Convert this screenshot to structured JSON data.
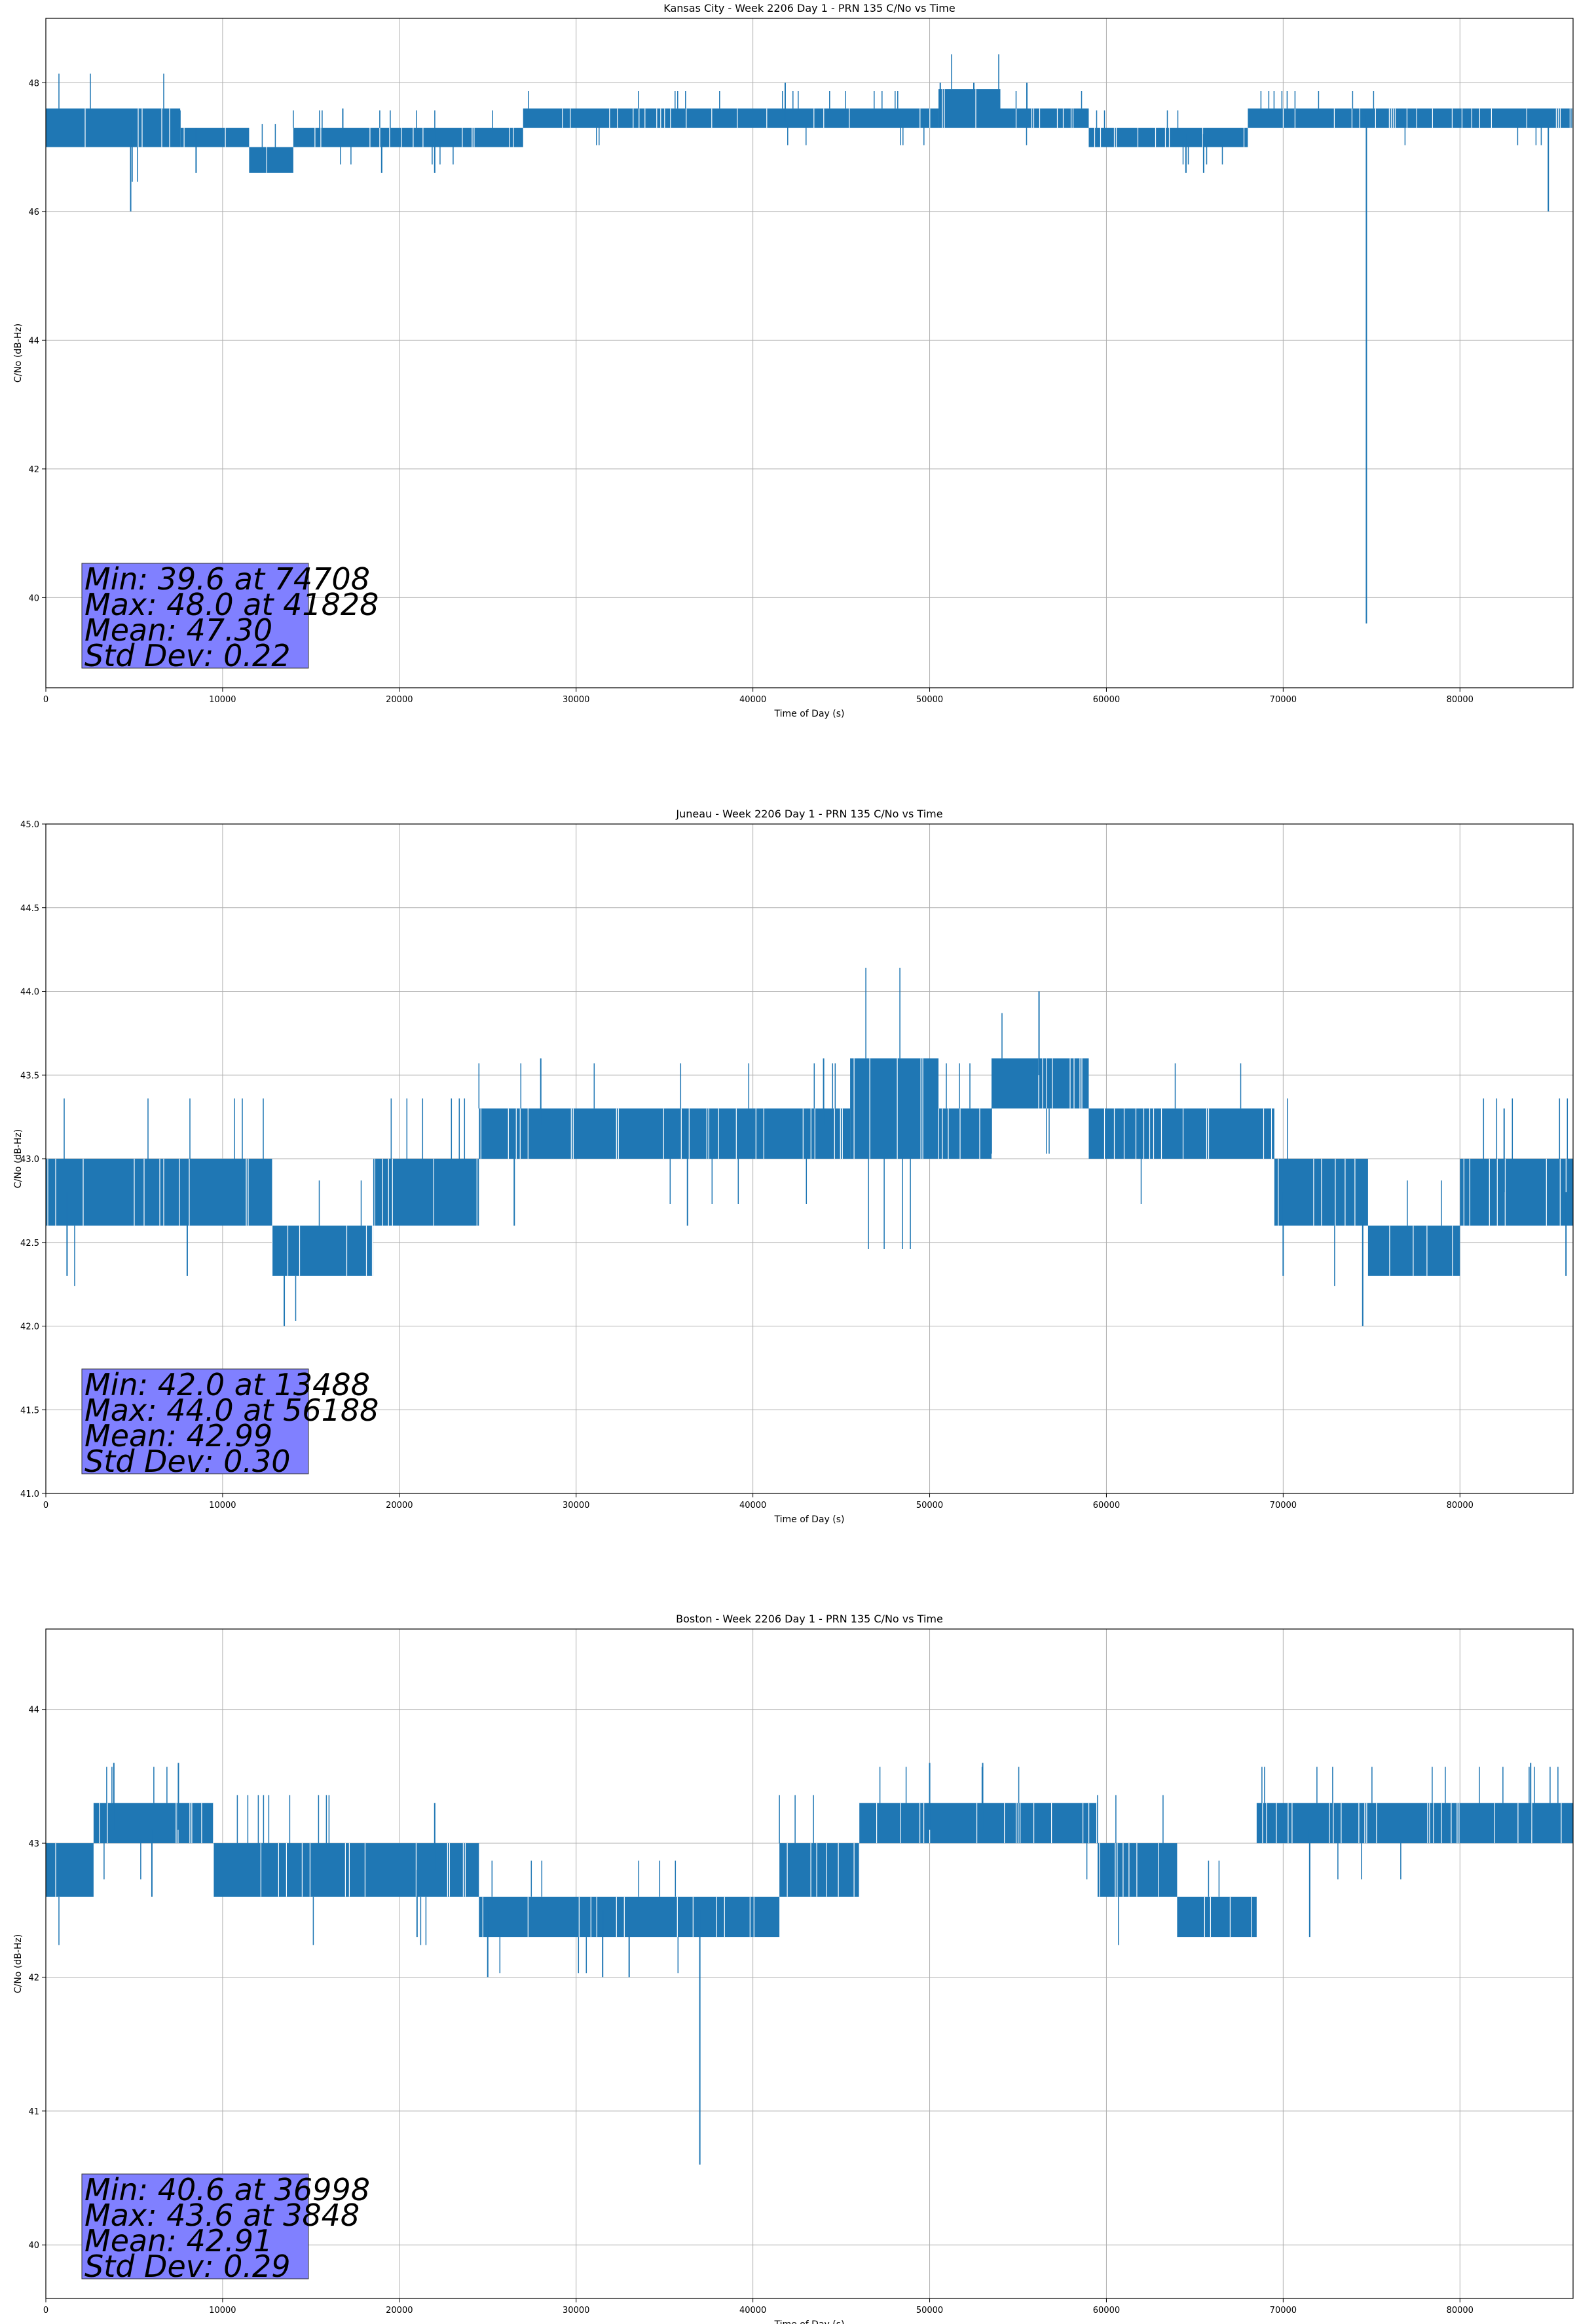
{
  "figure": {
    "background": "#ffffff",
    "line_color": "#1f77b4",
    "grid_color": "#b0b0b0",
    "stats_box_color": "#8080ff"
  },
  "chart_data": [
    {
      "type": "line",
      "title": "Kansas City - Week 2206 Day 1 - PRN 135 C/No vs Time",
      "xlabel": "Time of Day (s)",
      "ylabel": "C/No (dB-Hz)",
      "xlim": [
        0,
        86400
      ],
      "ylim": [
        38.6,
        49.0
      ],
      "xticks": [
        0,
        10000,
        20000,
        30000,
        40000,
        50000,
        60000,
        70000,
        80000
      ],
      "xtick_labels": [
        "0",
        "10000",
        "20000",
        "30000",
        "40000",
        "50000",
        "60000",
        "70000",
        "80000"
      ],
      "yticks": [
        40,
        42,
        44,
        46,
        48
      ],
      "ytick_labels": [
        "40",
        "42",
        "44",
        "46",
        "48"
      ],
      "grid": true,
      "series": [
        {
          "segments": [
            {
              "x0": 0,
              "x1": 7600,
              "lo": 47.0,
              "hi": 47.6,
              "base": 47.3
            },
            {
              "x0": 7600,
              "x1": 11500,
              "lo": 47.0,
              "hi": 47.3,
              "base": 47.3
            },
            {
              "x0": 11500,
              "x1": 14000,
              "lo": 46.6,
              "hi": 47.0,
              "base": 46.8
            },
            {
              "x0": 14000,
              "x1": 27000,
              "lo": 47.0,
              "hi": 47.3,
              "base": 47.3
            },
            {
              "x0": 27000,
              "x1": 50500,
              "lo": 47.3,
              "hi": 47.6,
              "base": 47.4
            },
            {
              "x0": 50500,
              "x1": 54000,
              "lo": 47.3,
              "hi": 47.9,
              "base": 47.6
            },
            {
              "x0": 54000,
              "x1": 59000,
              "lo": 47.3,
              "hi": 47.6,
              "base": 47.4
            },
            {
              "x0": 59000,
              "x1": 68000,
              "lo": 47.0,
              "hi": 47.3,
              "base": 47.2
            },
            {
              "x0": 68000,
              "x1": 86400,
              "lo": 47.3,
              "hi": 47.6,
              "base": 47.5
            }
          ],
          "spikes": [
            {
              "x": 4800,
              "y": 46.0
            },
            {
              "x": 8500,
              "y": 46.6
            },
            {
              "x": 16800,
              "y": 47.6
            },
            {
              "x": 19000,
              "y": 46.6
            },
            {
              "x": 22000,
              "y": 46.6
            },
            {
              "x": 41828,
              "y": 48.0
            },
            {
              "x": 50600,
              "y": 48.0
            },
            {
              "x": 52500,
              "y": 48.0
            },
            {
              "x": 55500,
              "y": 48.0
            },
            {
              "x": 64500,
              "y": 46.6
            },
            {
              "x": 65500,
              "y": 46.6
            },
            {
              "x": 74708,
              "y": 39.6
            },
            {
              "x": 85000,
              "y": 46.0
            }
          ]
        }
      ],
      "stats": [
        "Min: 39.6 at 74708",
        "Max: 48.0 at 41828",
        "Mean: 47.30",
        "Std Dev: 0.22"
      ]
    },
    {
      "type": "line",
      "title": "Juneau - Week 2206 Day 1 - PRN 135 C/No vs Time",
      "xlabel": "Time of Day (s)",
      "ylabel": "C/No (dB-Hz)",
      "xlim": [
        0,
        86400
      ],
      "ylim": [
        41.0,
        45.0
      ],
      "xticks": [
        0,
        10000,
        20000,
        30000,
        40000,
        50000,
        60000,
        70000,
        80000
      ],
      "xtick_labels": [
        "0",
        "10000",
        "20000",
        "30000",
        "40000",
        "50000",
        "60000",
        "70000",
        "80000"
      ],
      "yticks": [
        41.0,
        41.5,
        42.0,
        42.5,
        43.0,
        43.5,
        44.0,
        44.5,
        45.0
      ],
      "ytick_labels": [
        "41.0",
        "41.5",
        "42.0",
        "42.5",
        "43.0",
        "43.5",
        "44.0",
        "44.5",
        "45.0"
      ],
      "grid": true,
      "series": [
        {
          "segments": [
            {
              "x0": 0,
              "x1": 12800,
              "lo": 42.6,
              "hi": 43.0,
              "base": 42.8
            },
            {
              "x0": 12800,
              "x1": 18500,
              "lo": 42.3,
              "hi": 42.6,
              "base": 42.4
            },
            {
              "x0": 18500,
              "x1": 24500,
              "lo": 42.6,
              "hi": 43.0,
              "base": 42.8
            },
            {
              "x0": 24500,
              "x1": 45500,
              "lo": 43.0,
              "hi": 43.3,
              "base": 43.2
            },
            {
              "x0": 45500,
              "x1": 50500,
              "lo": 43.0,
              "hi": 43.6,
              "base": 43.3
            },
            {
              "x0": 50500,
              "x1": 53500,
              "lo": 43.0,
              "hi": 43.3,
              "base": 43.1
            },
            {
              "x0": 53500,
              "x1": 59000,
              "lo": 43.3,
              "hi": 43.6,
              "base": 43.5
            },
            {
              "x0": 59000,
              "x1": 69500,
              "lo": 43.0,
              "hi": 43.3,
              "base": 43.1
            },
            {
              "x0": 69500,
              "x1": 74800,
              "lo": 42.6,
              "hi": 43.0,
              "base": 42.8
            },
            {
              "x0": 74800,
              "x1": 80000,
              "lo": 42.3,
              "hi": 42.6,
              "base": 42.4
            },
            {
              "x0": 80000,
              "x1": 86400,
              "lo": 42.6,
              "hi": 43.0,
              "base": 42.8
            }
          ],
          "spikes": [
            {
              "x": 1200,
              "y": 42.3
            },
            {
              "x": 8000,
              "y": 42.3
            },
            {
              "x": 13488,
              "y": 42.0
            },
            {
              "x": 26500,
              "y": 42.6
            },
            {
              "x": 28000,
              "y": 43.6
            },
            {
              "x": 36300,
              "y": 42.6
            },
            {
              "x": 44000,
              "y": 43.6
            },
            {
              "x": 56188,
              "y": 44.0
            },
            {
              "x": 70000,
              "y": 42.3
            },
            {
              "x": 74500,
              "y": 42.0
            },
            {
              "x": 82500,
              "y": 43.3
            },
            {
              "x": 86000,
              "y": 42.3
            }
          ]
        }
      ],
      "stats": [
        "Min: 42.0 at 13488",
        "Max: 44.0 at 56188",
        "Mean: 42.99",
        "Std Dev: 0.30"
      ]
    },
    {
      "type": "line",
      "title": "Boston - Week 2206 Day 1 - PRN 135 C/No vs Time",
      "xlabel": "Time of Day (s)",
      "ylabel": "C/No (dB-Hz)",
      "xlim": [
        0,
        86400
      ],
      "ylim": [
        39.6,
        44.6
      ],
      "xticks": [
        0,
        10000,
        20000,
        30000,
        40000,
        50000,
        60000,
        70000,
        80000
      ],
      "xtick_labels": [
        "0",
        "10000",
        "20000",
        "30000",
        "40000",
        "50000",
        "60000",
        "70000",
        "80000"
      ],
      "yticks": [
        40,
        41,
        42,
        43,
        44
      ],
      "ytick_labels": [
        "40",
        "41",
        "42",
        "43",
        "44"
      ],
      "grid": true,
      "series": [
        {
          "segments": [
            {
              "x0": 0,
              "x1": 2700,
              "lo": 42.6,
              "hi": 43.0,
              "base": 42.8
            },
            {
              "x0": 2700,
              "x1": 9500,
              "lo": 43.0,
              "hi": 43.3,
              "base": 43.1
            },
            {
              "x0": 9500,
              "x1": 24500,
              "lo": 42.6,
              "hi": 43.0,
              "base": 42.8
            },
            {
              "x0": 24500,
              "x1": 41500,
              "lo": 42.3,
              "hi": 42.6,
              "base": 42.5
            },
            {
              "x0": 41500,
              "x1": 46000,
              "lo": 42.6,
              "hi": 43.0,
              "base": 42.8
            },
            {
              "x0": 46000,
              "x1": 59500,
              "lo": 43.0,
              "hi": 43.3,
              "base": 43.1
            },
            {
              "x0": 59500,
              "x1": 64000,
              "lo": 42.6,
              "hi": 43.0,
              "base": 42.8
            },
            {
              "x0": 64000,
              "x1": 68500,
              "lo": 42.3,
              "hi": 42.6,
              "base": 42.5
            },
            {
              "x0": 68500,
              "x1": 86400,
              "lo": 43.0,
              "hi": 43.3,
              "base": 43.1
            }
          ],
          "spikes": [
            {
              "x": 3848,
              "y": 43.6
            },
            {
              "x": 7500,
              "y": 43.6
            },
            {
              "x": 6000,
              "y": 42.6
            },
            {
              "x": 21000,
              "y": 42.3
            },
            {
              "x": 22000,
              "y": 43.3
            },
            {
              "x": 25000,
              "y": 42.0
            },
            {
              "x": 31500,
              "y": 42.0
            },
            {
              "x": 33000,
              "y": 42.0
            },
            {
              "x": 36998,
              "y": 40.6
            },
            {
              "x": 50000,
              "y": 43.6
            },
            {
              "x": 53000,
              "y": 43.6
            },
            {
              "x": 71500,
              "y": 42.3
            },
            {
              "x": 84000,
              "y": 43.6
            }
          ]
        }
      ],
      "stats": [
        "Min: 40.6 at 36998",
        "Max: 43.6 at 3848",
        "Mean: 42.91",
        "Std Dev: 0.29"
      ]
    }
  ]
}
